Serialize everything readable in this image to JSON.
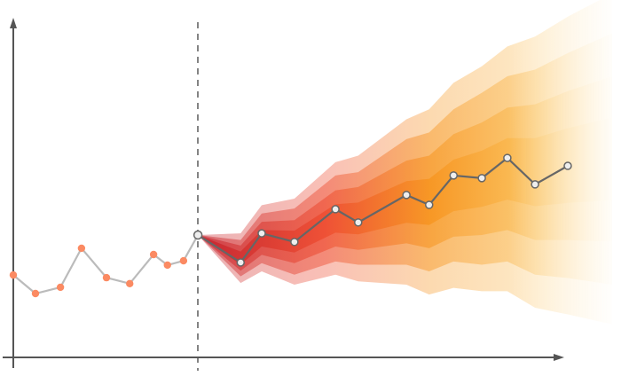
{
  "chart_data": {
    "type": "line",
    "title": "",
    "xlabel": "",
    "ylabel": "",
    "xlim": [
      0,
      108
    ],
    "ylim": [
      0,
      100
    ],
    "grid": false,
    "axis_ticks": false,
    "history": {
      "x": [
        0,
        4,
        8.5,
        12.3,
        16.8,
        21,
        25.3,
        27.8,
        30.7,
        33.3
      ],
      "y": [
        24.9,
        19.3,
        21.2,
        33,
        24.1,
        22.3,
        31.1,
        27.9,
        29.2,
        37
      ],
      "line_color": "#bbbbbb",
      "marker_color": "#fb8a62"
    },
    "forecast_start_x": 33.3,
    "forecast": {
      "x": [
        33.3,
        41,
        44.8,
        50.7,
        58.1,
        62.2,
        70.9,
        75,
        79.4,
        84.5,
        89.1,
        94.1,
        100
      ],
      "y": [
        37,
        28.7,
        37.5,
        34.9,
        44.8,
        40.8,
        49.1,
        46.1,
        55,
        54.2,
        60.3,
        52.3,
        57.9
      ],
      "line_color": "#666666",
      "marker_color": "#eeeeee"
    },
    "fan_bands": {
      "x": [
        33.3,
        41,
        44.8,
        50.7,
        58.1,
        62.2,
        70.9,
        75,
        79.4,
        84.5,
        89.1,
        94.1,
        100,
        108
      ],
      "center": [
        37,
        30,
        36,
        35,
        42,
        42,
        47,
        47,
        52,
        54,
        57,
        56,
        58,
        60
      ],
      "half_widths": [
        [
          0,
          7.5,
          10,
          13,
          17,
          19,
          25,
          28,
          31,
          34,
          37,
          41,
          45,
          50
        ],
        [
          0,
          5.5,
          7.5,
          10,
          13,
          14,
          19,
          21,
          23,
          26,
          28,
          31,
          34,
          38
        ],
        [
          0,
          3.8,
          5,
          6.5,
          8.5,
          9.5,
          12.5,
          14,
          15.5,
          17,
          18.5,
          20.5,
          22.5,
          25
        ],
        [
          0,
          2,
          2.5,
          3.3,
          4.3,
          4.8,
          6.3,
          7,
          7.8,
          8.5,
          9.3,
          10.3,
          11.3,
          12.5
        ]
      ],
      "colors": [
        "#c41e2a",
        "#ee4a2e",
        "#f7941d",
        "#fbc15a",
        "#fde3a8"
      ]
    },
    "axis_color": "#555555",
    "divider_color": "#333333"
  }
}
